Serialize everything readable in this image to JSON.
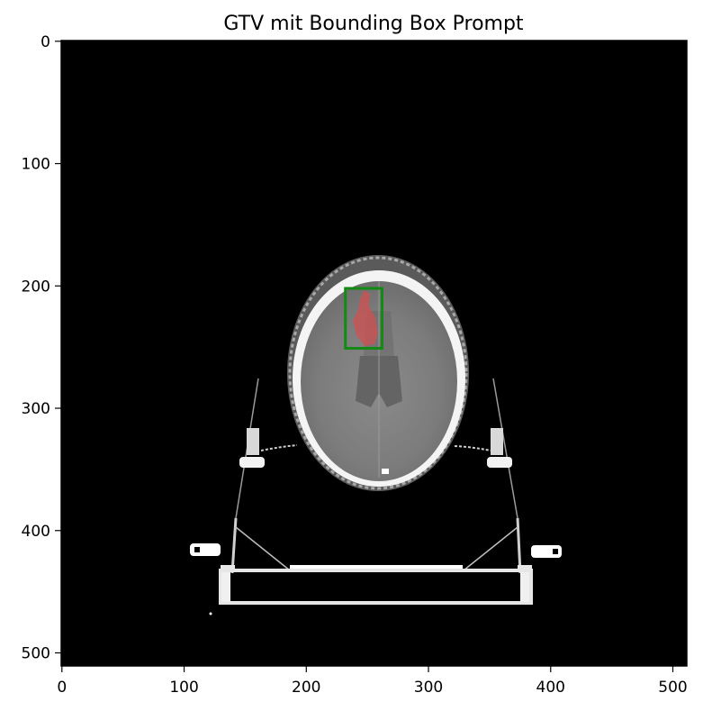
{
  "figure": {
    "title": "GTV mit Bounding Box Prompt"
  },
  "axes": {
    "x_ticks": [
      {
        "value": 0,
        "label": "0"
      },
      {
        "value": 100,
        "label": "100"
      },
      {
        "value": 200,
        "label": "200"
      },
      {
        "value": 300,
        "label": "300"
      },
      {
        "value": 400,
        "label": "400"
      },
      {
        "value": 500,
        "label": "500"
      }
    ],
    "y_ticks": [
      {
        "value": 0,
        "label": "0"
      },
      {
        "value": 100,
        "label": "100"
      },
      {
        "value": 200,
        "label": "200"
      },
      {
        "value": 300,
        "label": "300"
      },
      {
        "value": 400,
        "label": "400"
      },
      {
        "value": 500,
        "label": "500"
      }
    ],
    "x_range": [
      0,
      512
    ],
    "y_range": [
      0,
      512
    ]
  },
  "image": {
    "description_type": "axial CT slice of head",
    "background_color": "#000000"
  },
  "overlay": {
    "bounding_box": {
      "x0": 232,
      "y0": 202,
      "x1": 262,
      "y1": 251,
      "color": "#138a13"
    },
    "mask_color": "#d05050"
  }
}
